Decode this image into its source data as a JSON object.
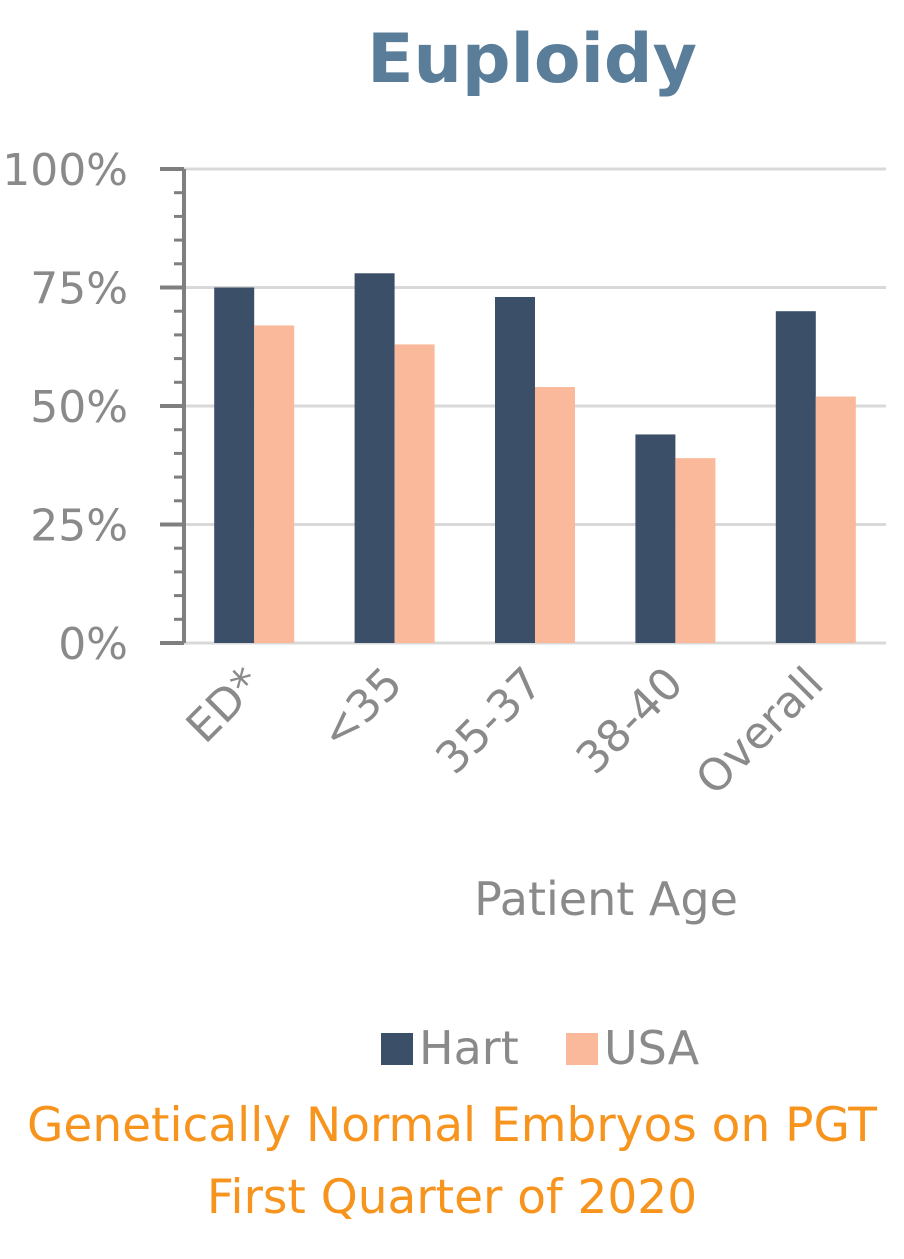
{
  "chart_data": {
    "type": "bar",
    "title": "Euploidy",
    "xlabel": "Patient Age",
    "ylabel": "",
    "categories": [
      "ED*",
      "<35",
      "35-37",
      "38-40",
      "Overall"
    ],
    "series": [
      {
        "name": "Hart",
        "values": [
          75,
          78,
          73,
          44,
          70
        ],
        "color": "#3b5068"
      },
      {
        "name": "USA",
        "values": [
          67,
          63,
          54,
          39,
          52
        ],
        "color": "#f9b99a"
      }
    ],
    "ylim": [
      0,
      100
    ],
    "yticks": [
      "0%",
      "25%",
      "50%",
      "75%",
      "100%"
    ],
    "ytick_values": [
      0,
      25,
      50,
      75,
      100
    ],
    "grid": true,
    "legend_position": "bottom"
  },
  "caption": {
    "line1": "Genetically Normal Embryos on PGT",
    "line2": "First Quarter of 2020"
  }
}
